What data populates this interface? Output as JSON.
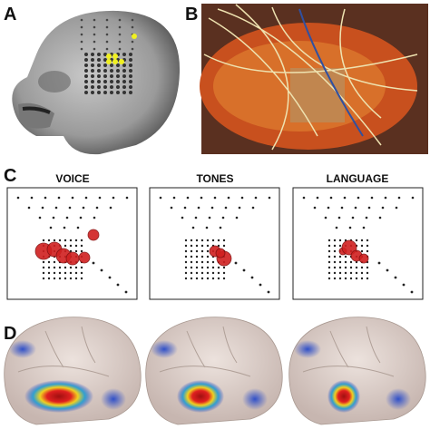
{
  "panels": [
    {
      "label": "A"
    },
    {
      "label": "B"
    },
    {
      "label": "C",
      "titles": [
        "VOICE",
        "TONES",
        "LANGUAGE"
      ]
    },
    {
      "label": "D"
    }
  ]
}
